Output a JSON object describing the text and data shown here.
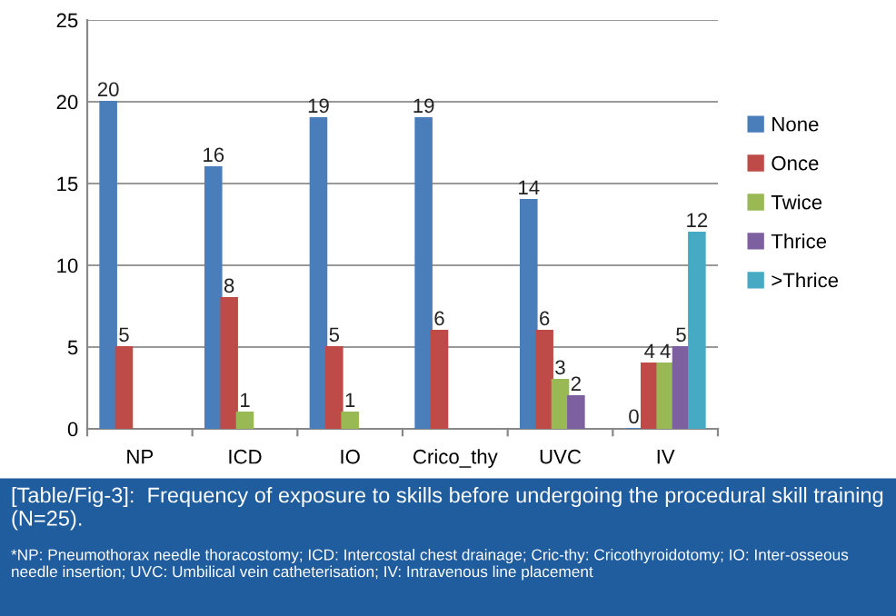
{
  "chart_data": {
    "type": "bar",
    "categories": [
      "NP",
      "ICD",
      "IO",
      "Crico_thy",
      "UVC",
      "IV"
    ],
    "series": [
      {
        "name": "None",
        "color": "#4a7ebb",
        "values": [
          20,
          16,
          19,
          19,
          14,
          0
        ],
        "value_labels": [
          "20",
          "16",
          "19",
          "19",
          "14",
          "0"
        ]
      },
      {
        "name": "Once",
        "color": "#be4b48",
        "values": [
          5,
          8,
          5,
          6,
          6,
          4
        ],
        "value_labels": [
          "5",
          "8",
          "5",
          "6",
          "6",
          "4"
        ]
      },
      {
        "name": "Twice",
        "color": "#98b954",
        "values": [
          null,
          1,
          1,
          null,
          3,
          4
        ],
        "value_labels": [
          null,
          "1",
          "1",
          null,
          "3",
          "4"
        ]
      },
      {
        "name": "Thrice",
        "color": "#7d60a0",
        "values": [
          null,
          null,
          null,
          null,
          2,
          5
        ],
        "value_labels": [
          null,
          null,
          null,
          null,
          "2",
          "5"
        ]
      },
      {
        "name": ">Thrice",
        "color": "#46aac5",
        "values": [
          null,
          null,
          null,
          null,
          null,
          12
        ],
        "value_labels": [
          null,
          null,
          null,
          null,
          null,
          "12"
        ]
      }
    ],
    "ylim": [
      0,
      25
    ],
    "yticks": [
      0,
      5,
      10,
      15,
      20,
      25
    ],
    "grid": "y",
    "legend": "right",
    "annotations": [
      "[Table/Fig-3]:  Frequency of exposure to skills before undergoing the procedural skill training (N=25).",
      "*NP: Pneumothorax needle thoracostomy; ICD: Intercostal chest drainage; Cric-thy: Cricothyroidotomy; IO: Inter-osseous needle insertion; UVC: Umbilical vein catheterisation; IV: Intravenous line placement"
    ]
  }
}
